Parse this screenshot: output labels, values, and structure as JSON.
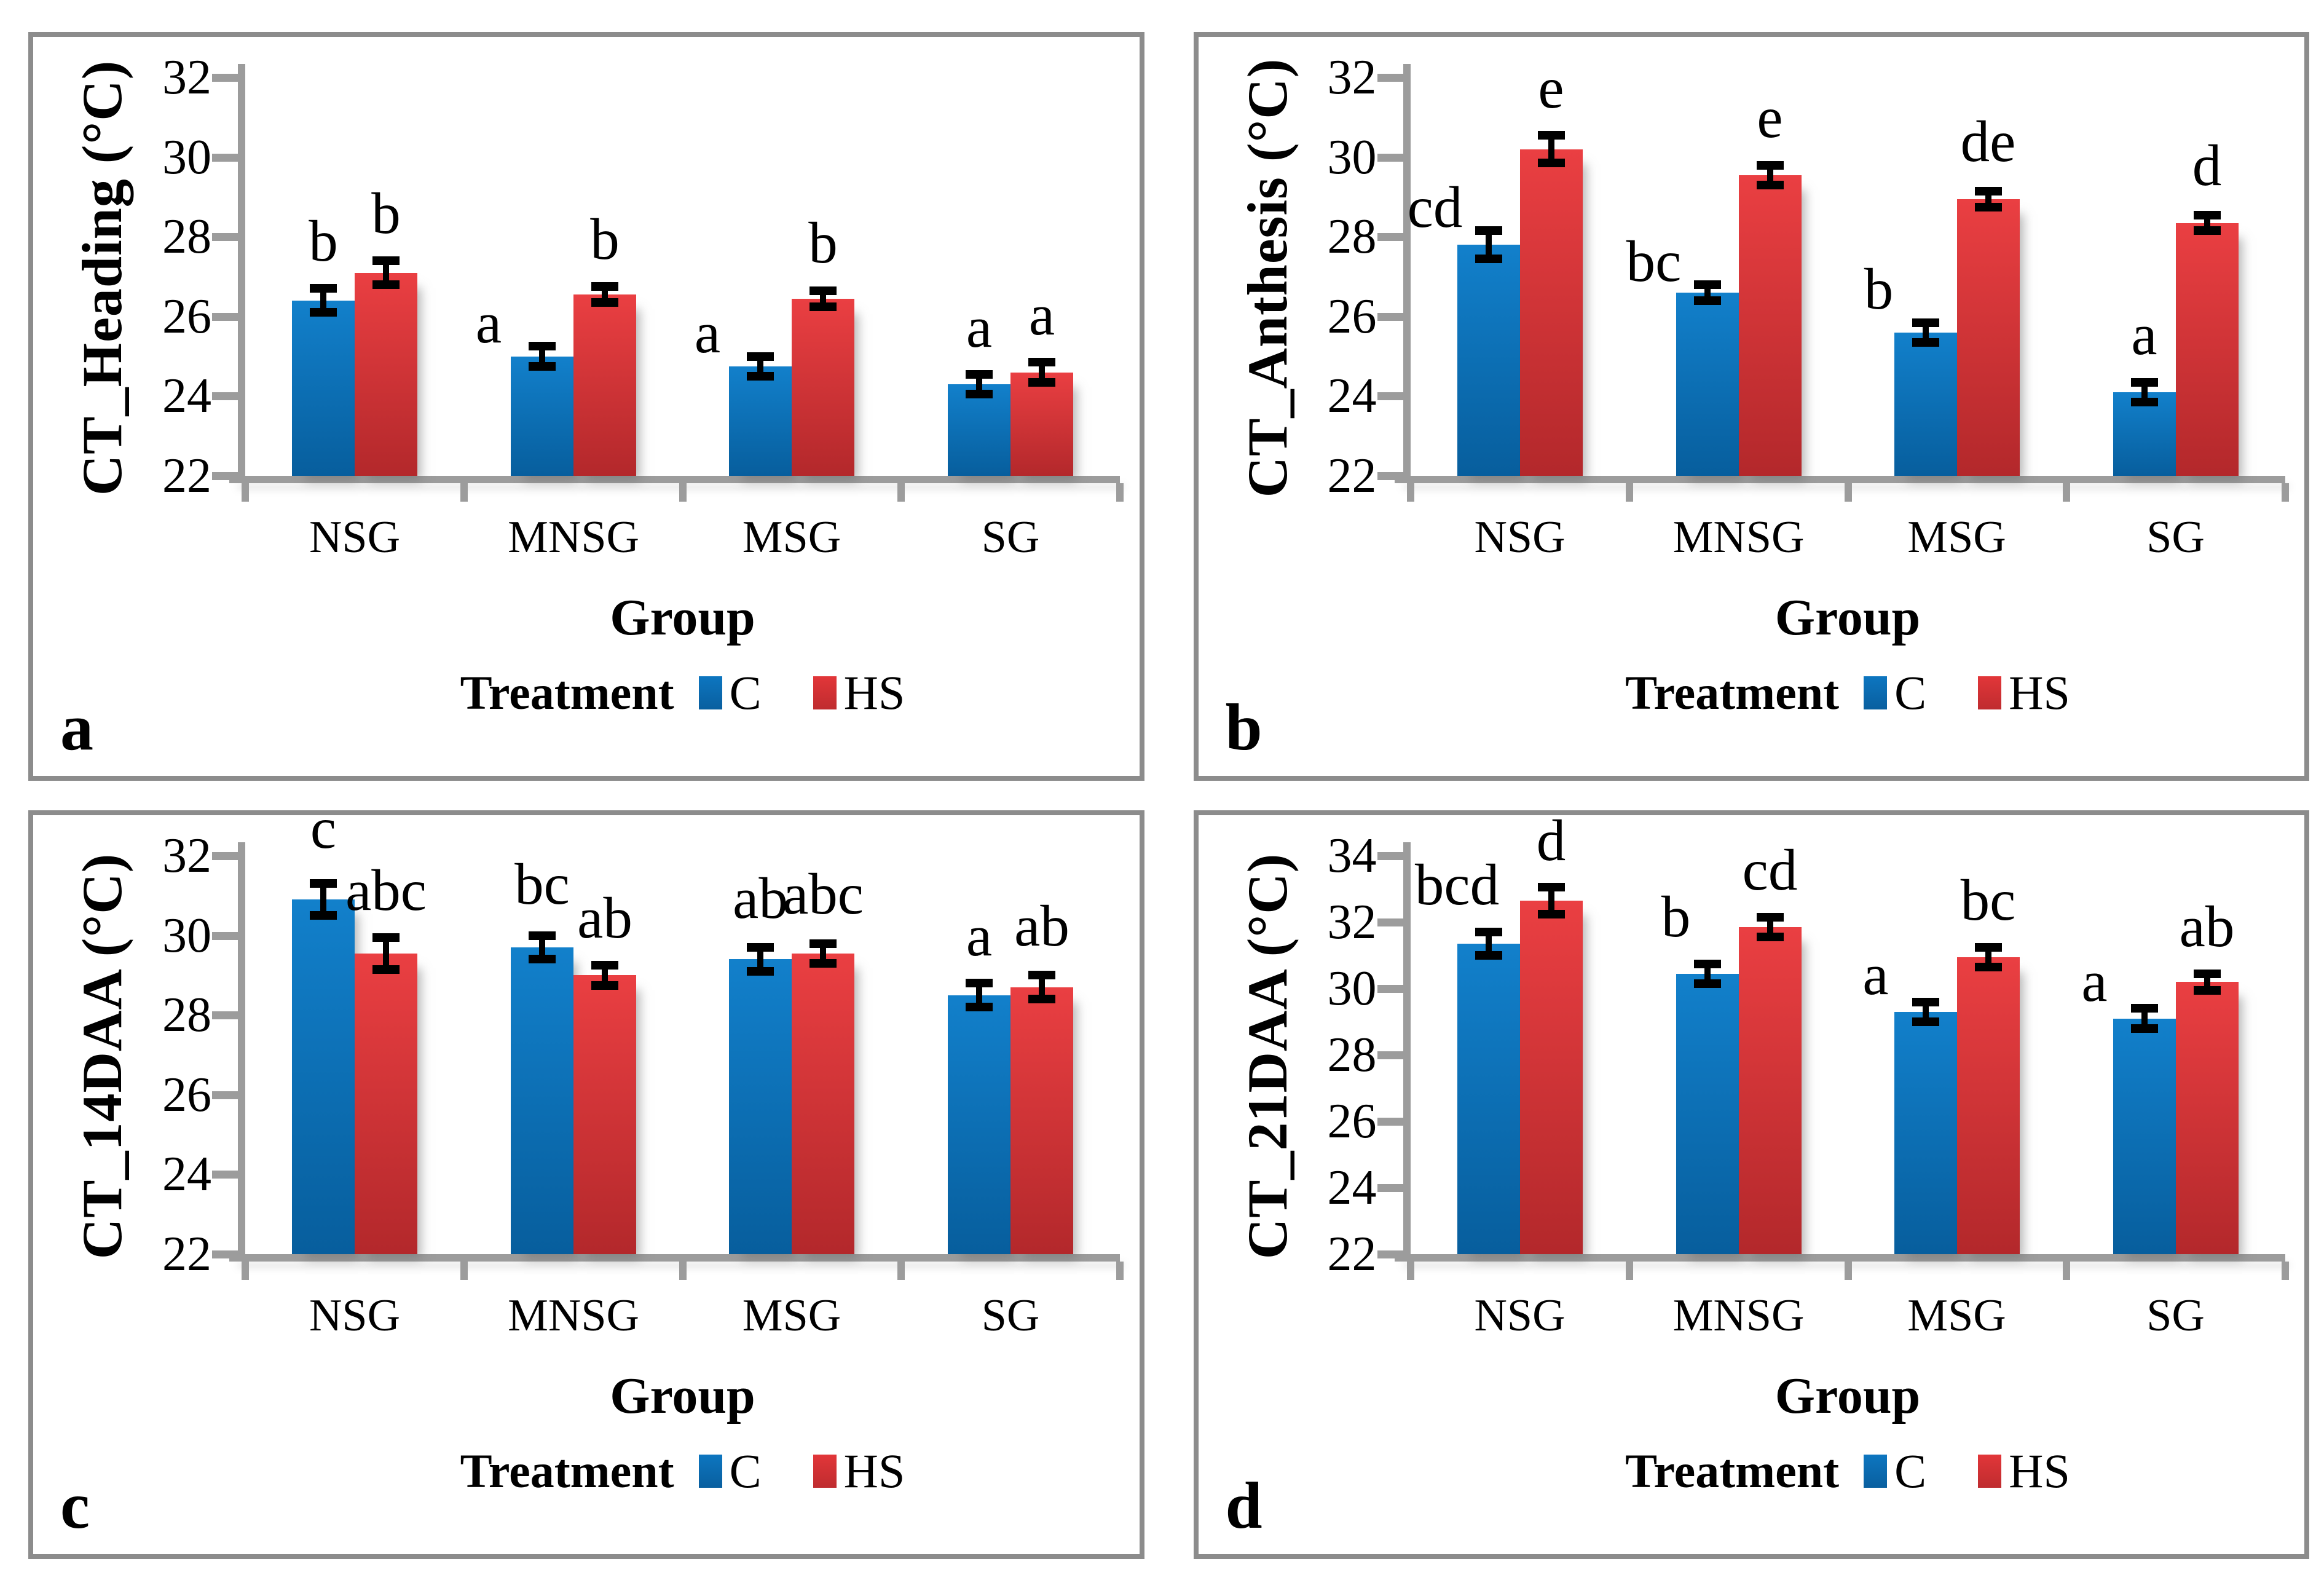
{
  "legend": {
    "title": "Treatment"
  },
  "colors": {
    "axis": "#9c9c9c",
    "panel_border": "#8c8c8c",
    "error_bar": "#000000",
    "text": "#000000",
    "c_bar_top": "#1280cb",
    "c_bar_bottom": "#075e9d",
    "hs_bar_top": "#ea3f42",
    "hs_bar_bottom": "#b3282b",
    "c_swatch_top": "#0d76c0",
    "c_swatch_bottom": "#095f9f",
    "hs_swatch_top": "#e23639",
    "hs_swatch_bottom": "#bf2c2f"
  },
  "chart_data": [
    {
      "type": "bar",
      "panel_label": "a",
      "ylabel": "CT_Heading (°C)",
      "xlabel": "Group",
      "categories": [
        "NSG",
        "MNSG",
        "MSG",
        "SG"
      ],
      "ylim": [
        22,
        32
      ],
      "yticks": [
        22,
        24,
        26,
        28,
        30,
        32
      ],
      "grid": false,
      "legend_position": "bottom",
      "series": [
        {
          "name": "C",
          "values": [
            26.4,
            25.0,
            24.75,
            24.3
          ],
          "errors": [
            0.3,
            0.25,
            0.25,
            0.25
          ],
          "letters": [
            "b",
            "a",
            "a",
            "a"
          ],
          "letter_dx": [
            0,
            -0.85,
            -0.85,
            0
          ],
          "letter_dy": [
            0.05,
            -0.55,
            -0.55,
            0.05
          ]
        },
        {
          "name": "HS",
          "values": [
            27.1,
            26.55,
            26.45,
            24.6
          ],
          "errors": [
            0.3,
            0.2,
            0.2,
            0.25
          ],
          "letters": [
            "b",
            "b",
            "b",
            "a"
          ],
          "letter_dx": [
            0,
            0,
            0,
            0
          ],
          "letter_dy": [
            0.05,
            0.05,
            0.05,
            0.05
          ]
        }
      ]
    },
    {
      "type": "bar",
      "panel_label": "b",
      "ylabel": "CT_Anthesis (°C)",
      "xlabel": "Group",
      "categories": [
        "NSG",
        "MNSG",
        "MSG",
        "SG"
      ],
      "ylim": [
        22,
        32
      ],
      "yticks": [
        22,
        24,
        26,
        28,
        30,
        32
      ],
      "grid": false,
      "legend_position": "bottom",
      "series": [
        {
          "name": "C",
          "values": [
            27.8,
            26.6,
            25.6,
            24.1
          ],
          "errors": [
            0.35,
            0.2,
            0.25,
            0.25
          ],
          "letters": [
            "cd",
            "bc",
            "b",
            "a"
          ],
          "letter_dx": [
            -0.85,
            -0.85,
            -0.75,
            0
          ],
          "letter_dy": [
            -0.55,
            -0.55,
            -0.3,
            0.05
          ]
        },
        {
          "name": "HS",
          "values": [
            30.2,
            29.55,
            28.95,
            28.35
          ],
          "errors": [
            0.35,
            0.25,
            0.2,
            0.2
          ],
          "letters": [
            "e",
            "e",
            "de",
            "d"
          ],
          "letter_dx": [
            0,
            0,
            0,
            0
          ],
          "letter_dy": [
            0.05,
            0.05,
            0.1,
            0.1
          ]
        }
      ]
    },
    {
      "type": "bar",
      "panel_label": "c",
      "ylabel": "CT_14DAA (°C)",
      "xlabel": "Group",
      "categories": [
        "NSG",
        "MNSG",
        "MSG",
        "SG"
      ],
      "ylim": [
        22,
        32
      ],
      "yticks": [
        22,
        24,
        26,
        28,
        30,
        32
      ],
      "grid": false,
      "legend_position": "bottom",
      "series": [
        {
          "name": "C",
          "values": [
            30.9,
            29.7,
            29.4,
            28.5
          ],
          "errors": [
            0.4,
            0.3,
            0.3,
            0.3
          ],
          "letters": [
            "c",
            "bc",
            "ab",
            "a"
          ],
          "letter_dx": [
            0,
            0,
            0,
            0
          ],
          "letter_dy": [
            0.25,
            0.15,
            0.1,
            0.05
          ]
        },
        {
          "name": "HS",
          "values": [
            29.55,
            29.0,
            29.55,
            28.7
          ],
          "errors": [
            0.4,
            0.25,
            0.25,
            0.3
          ],
          "letters": [
            "abc",
            "ab",
            "abc",
            "ab"
          ],
          "letter_dx": [
            0,
            0,
            0,
            0
          ],
          "letter_dy": [
            0.05,
            0.05,
            0.1,
            0.1
          ]
        }
      ]
    },
    {
      "type": "bar",
      "panel_label": "d",
      "ylabel": "CT_21DAA (°C)",
      "xlabel": "Group",
      "categories": [
        "NSG",
        "MNSG",
        "MSG",
        "SG"
      ],
      "ylim": [
        22,
        34
      ],
      "yticks": [
        22,
        24,
        26,
        28,
        30,
        32,
        34
      ],
      "grid": false,
      "legend_position": "bottom",
      "series": [
        {
          "name": "C",
          "values": [
            31.35,
            30.45,
            29.3,
            29.1
          ],
          "errors": [
            0.35,
            0.3,
            0.3,
            0.3
          ],
          "letters": [
            "bcd",
            "b",
            "a",
            "a"
          ],
          "letter_dx": [
            -0.5,
            -0.5,
            -0.8,
            -0.8
          ],
          "letter_dy": [
            0.05,
            0.05,
            -0.55,
            -0.55
          ]
        },
        {
          "name": "HS",
          "values": [
            32.65,
            31.85,
            30.95,
            30.2
          ],
          "errors": [
            0.4,
            0.3,
            0.3,
            0.25
          ],
          "letters": [
            "d",
            "cd",
            "bc",
            "ab"
          ],
          "letter_dx": [
            0,
            0,
            0,
            0
          ],
          "letter_dy": [
            0.05,
            0.05,
            0.05,
            0.05
          ]
        }
      ]
    }
  ]
}
